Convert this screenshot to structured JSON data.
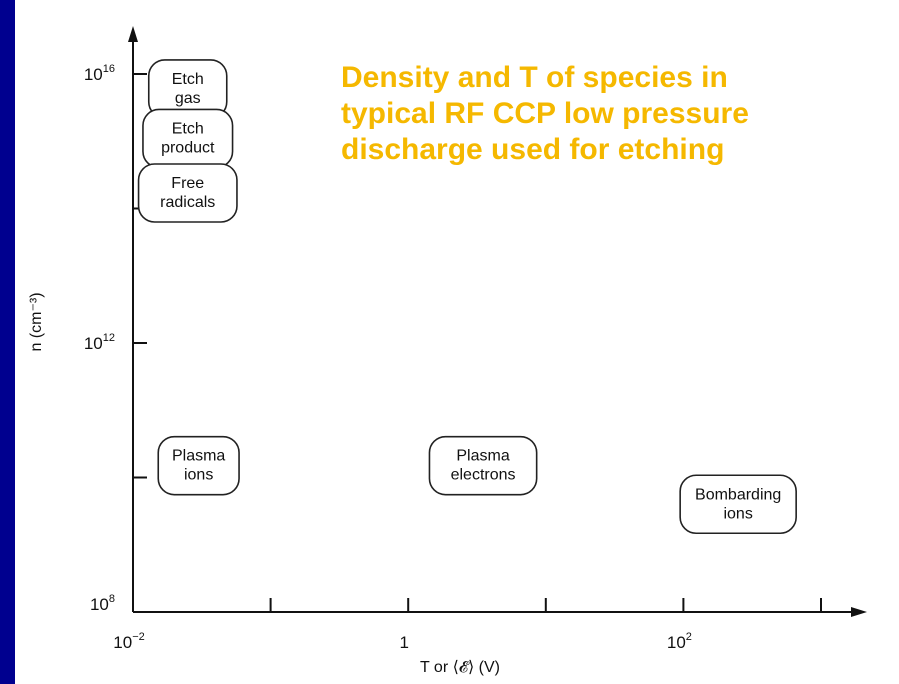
{
  "colors": {
    "background": "#00008f",
    "panel": "#ffffff",
    "title": "#f5b800",
    "ink": "#111111"
  },
  "chart_data": {
    "type": "scatter",
    "title_lines": [
      "Density and T of species in",
      "typical RF CCP low pressure",
      "discharge used for etching"
    ],
    "xlabel": "T or ⟨𝓔⟩ (V)",
    "ylabel": "n (cm⁻³)",
    "x_scale": "log",
    "y_scale": "log",
    "xlim": [
      0.01,
      10000
    ],
    "ylim": [
      100000000.0,
      1e+17
    ],
    "x_ticks": [
      0.01,
      0.1,
      1,
      10,
      100,
      1000
    ],
    "y_ticks": [
      100000000.0,
      10000000000.0,
      1000000000000.0,
      100000000000000.0,
      1e+16
    ],
    "x_tick_labels": [
      {
        "value": 0.01,
        "base": "10",
        "exp": "−2"
      },
      {
        "value": 1,
        "base": "1",
        "exp": ""
      },
      {
        "value": 100,
        "base": "10",
        "exp": "2"
      }
    ],
    "y_tick_labels": [
      {
        "value": 100000000.0,
        "base": "10",
        "exp": "8"
      },
      {
        "value": 1000000000000.0,
        "base": "10",
        "exp": "12"
      },
      {
        "value": 1e+16,
        "base": "10",
        "exp": "16"
      }
    ],
    "grid": false,
    "points": [
      {
        "label_lines": [
          "Etch",
          "gas"
        ],
        "x": 0.025,
        "y": 6000000000000000.0
      },
      {
        "label_lines": [
          "Etch",
          "product"
        ],
        "x": 0.025,
        "y": 1100000000000000.0
      },
      {
        "label_lines": [
          "Free",
          "radicals"
        ],
        "x": 0.025,
        "y": 170000000000000.0
      },
      {
        "label_lines": [
          "Plasma",
          "ions"
        ],
        "x": 0.03,
        "y": 15000000000.0
      },
      {
        "label_lines": [
          "Plasma",
          "electrons"
        ],
        "x": 3.5,
        "y": 15000000000.0
      },
      {
        "label_lines": [
          "Bombarding",
          "ions"
        ],
        "x": 250,
        "y": 4000000000.0
      }
    ]
  }
}
